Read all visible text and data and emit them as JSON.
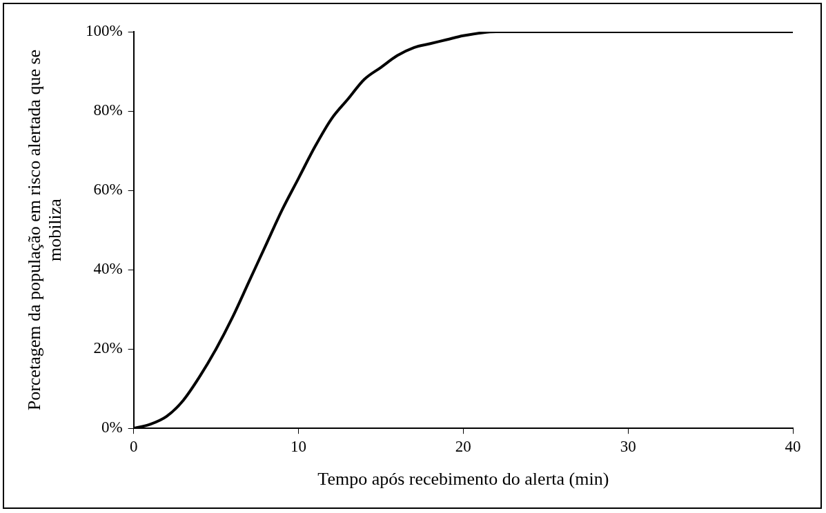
{
  "chart_data": {
    "type": "line",
    "xlabel": "Tempo após recebimento do alerta (min)",
    "ylabel": "Porcetagem da população em risco alertada que se mobiliza",
    "x": [
      0,
      1,
      2,
      3,
      4,
      5,
      6,
      7,
      8,
      9,
      10,
      11,
      12,
      13,
      14,
      15,
      16,
      17,
      18,
      19,
      20,
      22,
      25,
      30,
      35,
      40
    ],
    "series": [
      {
        "color": "#000000",
        "values": [
          0,
          1,
          3,
          7,
          13,
          20,
          28,
          37,
          46,
          55,
          63,
          71,
          78,
          83,
          88,
          91,
          94,
          96,
          97,
          98,
          99,
          100,
          100,
          100,
          100,
          100
        ]
      }
    ],
    "xlim": [
      0,
      40
    ],
    "xticks": [
      0,
      10,
      20,
      30,
      40
    ],
    "ylim": [
      0,
      100
    ],
    "yticks": [
      {
        "value": 0,
        "label": "0%"
      },
      {
        "value": 20,
        "label": "20%"
      },
      {
        "value": 40,
        "label": "40%"
      },
      {
        "value": 60,
        "label": "60%"
      },
      {
        "value": 80,
        "label": "80%"
      },
      {
        "value": 100,
        "label": "100%"
      }
    ],
    "grid": false,
    "legend": false,
    "marker": "none",
    "line_style": "solid"
  }
}
